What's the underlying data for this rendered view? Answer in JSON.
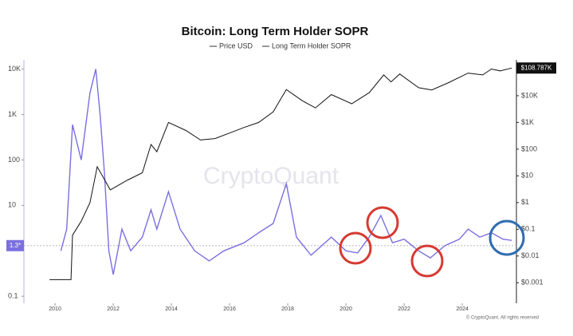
{
  "chart_data": {
    "type": "line",
    "title": "Bitcoin: Long Term Holder SOPR",
    "watermark": "CryptoQuant",
    "footer": "© CryptoQuant. All rights reserved",
    "log_scale": true,
    "legend": "top",
    "xlim": [
      2008.93,
      2025.86
    ],
    "xticks": [
      2010,
      2012,
      2014,
      2016,
      2018,
      2020,
      2022,
      2024
    ],
    "ylim": [
      0.07,
      16000
    ],
    "yticks": [
      0.1,
      10,
      100,
      {
        "value": 1000,
        "label": "1K"
      },
      {
        "value": 10000,
        "label": "10K"
      }
    ],
    "y2lim": [
      0.00017,
      220000
    ],
    "y2ticks": [
      {
        "value": 0.001,
        "label": "$0.001"
      },
      {
        "value": 0.01,
        "label": "$0.01"
      },
      {
        "value": 0.1,
        "label": "$0.1"
      },
      {
        "value": 1,
        "label": "$1"
      },
      {
        "value": 10,
        "label": "$10"
      },
      {
        "value": 100,
        "label": "$100"
      },
      {
        "value": 1000,
        "label": "$1K"
      },
      {
        "value": 10000,
        "label": "$10K"
      }
    ],
    "reference_line": {
      "value": 1.3,
      "label": "1.3*"
    },
    "series": [
      {
        "name": "Price USD",
        "color": "#111111",
        "axis": "y2",
        "x": [
          2009.81,
          2010.55,
          2010.6,
          2010.9,
          2011.2,
          2011.45,
          2011.9,
          2012.5,
          2013.0,
          2013.3,
          2013.5,
          2013.9,
          2014.5,
          2015.0,
          2015.5,
          2016.0,
          2016.5,
          2017.0,
          2017.5,
          2017.95,
          2018.5,
          2018.95,
          2019.5,
          2020.2,
          2020.8,
          2021.3,
          2021.55,
          2021.85,
          2022.5,
          2022.95,
          2023.5,
          2024.2,
          2024.7,
          2025.0,
          2025.3,
          2025.7
        ],
        "values": [
          0.0013,
          0.0013,
          0.06,
          0.2,
          1,
          22,
          3,
          7,
          13,
          150,
          80,
          1000,
          500,
          220,
          250,
          400,
          650,
          1000,
          2500,
          17000,
          6500,
          3500,
          11000,
          5000,
          13000,
          60000,
          33000,
          65000,
          20000,
          16500,
          30000,
          70000,
          60000,
          100000,
          85000,
          108787
        ],
        "last_label": {
          "value": 108787,
          "label": "$108.787K"
        }
      },
      {
        "name": "Long Term Holder SOPR",
        "color": "#7b6fe0",
        "x": [
          2010.2,
          2010.4,
          2010.6,
          2010.9,
          2011.2,
          2011.4,
          2011.55,
          2011.7,
          2011.85,
          2012.0,
          2012.3,
          2012.6,
          2013.0,
          2013.3,
          2013.5,
          2013.9,
          2014.3,
          2014.8,
          2015.3,
          2015.8,
          2016.5,
          2017.0,
          2017.5,
          2017.95,
          2018.3,
          2018.8,
          2019.5,
          2020.0,
          2020.4,
          2020.8,
          2021.2,
          2021.4,
          2021.6,
          2022.0,
          2022.5,
          2022.9,
          2023.4,
          2023.9,
          2024.2,
          2024.6,
          2025.0,
          2025.4,
          2025.7
        ],
        "values": [
          1,
          3,
          600,
          100,
          3000,
          10000,
          1000,
          50,
          1,
          0.3,
          3,
          1,
          2,
          8,
          3,
          20,
          3,
          1,
          0.6,
          1,
          1.5,
          2.5,
          4,
          30,
          2,
          0.8,
          2,
          1,
          0.9,
          2,
          6,
          3,
          1.5,
          1.8,
          1,
          0.7,
          1.3,
          1.8,
          3,
          2,
          2.5,
          1.8,
          1.7
        ]
      }
    ]
  }
}
